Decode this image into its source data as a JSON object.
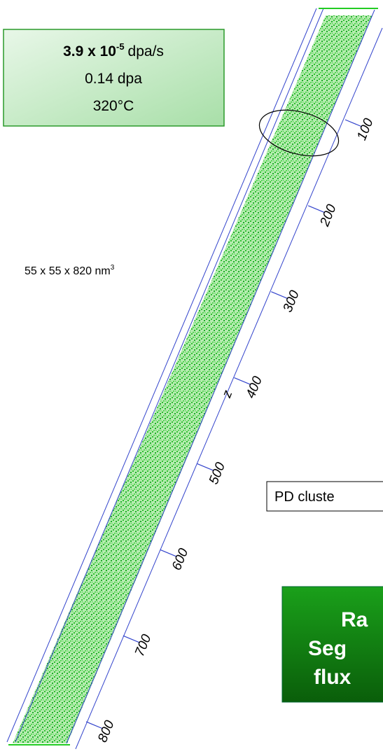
{
  "conditions": {
    "rate_base": "3.9 x 10",
    "rate_exp": "-5",
    "rate_unit": "dpa/s",
    "dose": "0.14 dpa",
    "temperature": "320°C"
  },
  "volume": {
    "text": "55 x 55 x 820 nm",
    "sup": "3"
  },
  "axis": {
    "label": "z",
    "ticks": [
      100,
      200,
      300,
      400,
      500,
      600,
      700,
      800
    ]
  },
  "label_box": "PD cluste",
  "conclusion": {
    "lines": [
      "Ra",
      "Seg",
      "flux"
    ]
  }
}
